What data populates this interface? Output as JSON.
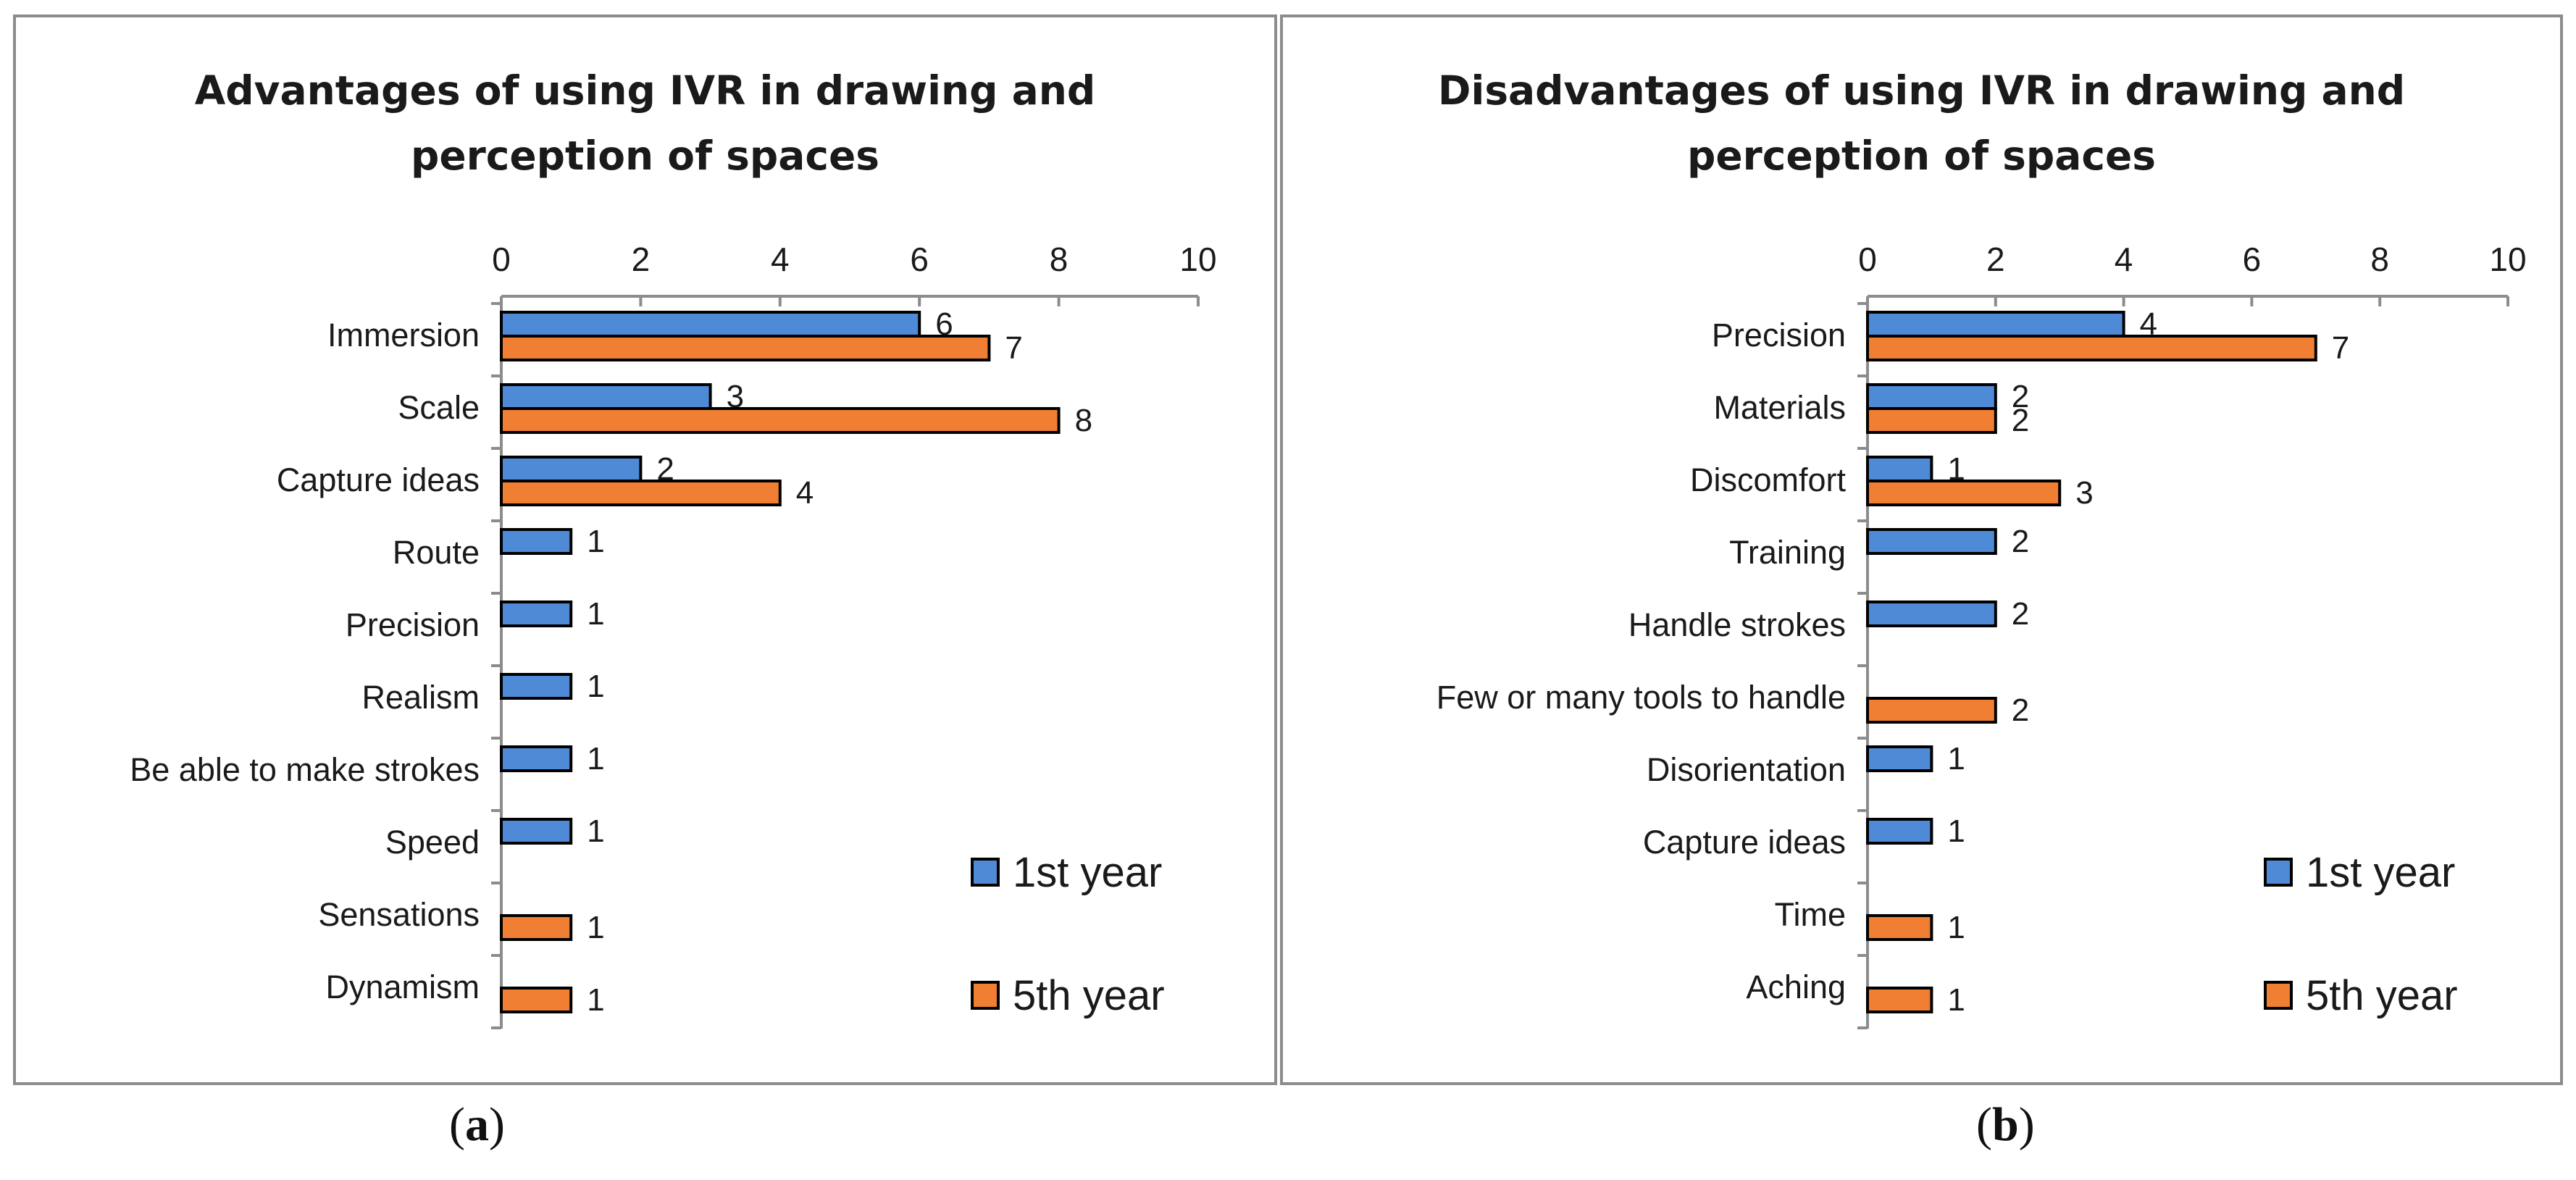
{
  "chart_data": [
    {
      "type": "bar",
      "orientation": "horizontal",
      "title": "Advantages of using IVR in drawing and perception of spaces",
      "title_lines": [
        "Advantages of using IVR in drawing and",
        "perception of spaces"
      ],
      "categories": [
        "Immersion",
        "Scale",
        "Capture ideas",
        "Route",
        "Precision",
        "Realism",
        "Be able to make strokes",
        "Speed",
        "Sensations",
        "Dynamism"
      ],
      "series": [
        {
          "name": "1st year",
          "color": "#4f8ad6",
          "values": [
            6,
            3,
            2,
            1,
            1,
            1,
            1,
            1,
            null,
            null
          ]
        },
        {
          "name": "5th year",
          "color": "#f07f33",
          "values": [
            7,
            8,
            4,
            null,
            null,
            null,
            null,
            null,
            1,
            1
          ]
        }
      ],
      "xlim": [
        0,
        10
      ],
      "xticks": [
        0,
        2,
        4,
        6,
        8,
        10
      ],
      "xlabel": "",
      "ylabel": "",
      "grid": false,
      "legend": "bottom-right",
      "caption": "a"
    },
    {
      "type": "bar",
      "orientation": "horizontal",
      "title": "Disadvantages of using IVR in drawing and perception of spaces",
      "title_lines": [
        "Disadvantages of using IVR in drawing and",
        "perception of spaces"
      ],
      "categories": [
        "Precision",
        "Materials",
        "Discomfort",
        "Training",
        "Handle strokes",
        "Few or many tools to handle",
        "Disorientation",
        "Capture ideas",
        "Time",
        "Aching"
      ],
      "series": [
        {
          "name": "1st year",
          "color": "#4f8ad6",
          "values": [
            4,
            2,
            1,
            2,
            2,
            null,
            1,
            1,
            null,
            null
          ]
        },
        {
          "name": "5th year",
          "color": "#f07f33",
          "values": [
            7,
            2,
            3,
            null,
            null,
            2,
            null,
            null,
            1,
            1
          ]
        }
      ],
      "xlim": [
        0,
        10
      ],
      "xticks": [
        0,
        2,
        4,
        6,
        8,
        10
      ],
      "xlabel": "",
      "ylabel": "",
      "grid": false,
      "legend": "bottom-right",
      "caption": "b"
    }
  ]
}
